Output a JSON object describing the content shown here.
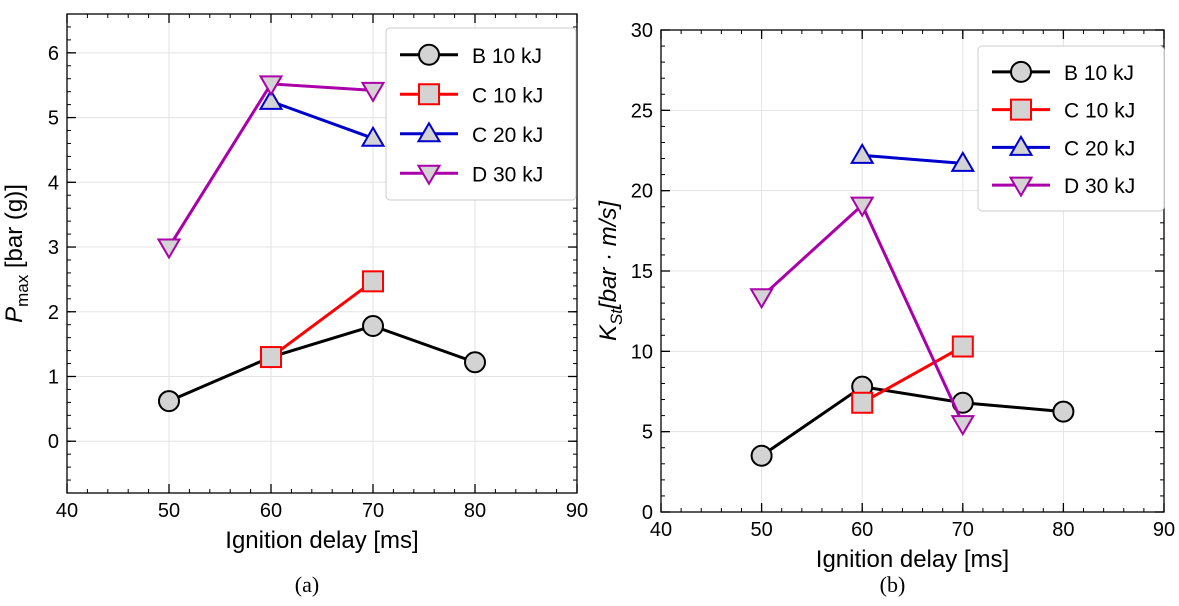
{
  "colors": {
    "B": "#000000",
    "C10": "#ff0000",
    "C20": "#0000cc",
    "D": "#aa00aa",
    "marker_fill": "#d3d3d3",
    "grid": "#e3e3e3"
  },
  "chart_data": [
    {
      "type": "line",
      "caption": "(a)",
      "xlabel": "Ignition delay [ms]",
      "ylabel": {
        "main": "P",
        "sub": "max",
        "tail": " [bar (g)]"
      },
      "xlim": [
        40,
        90
      ],
      "ylim": [
        -0.8,
        6.6
      ],
      "xticks": [
        40,
        50,
        60,
        70,
        80,
        90
      ],
      "yticks": [
        0,
        1,
        2,
        3,
        4,
        5,
        6
      ],
      "grid": true,
      "legend": "top-right",
      "series": [
        {
          "name": "B 10 kJ",
          "marker": "circle",
          "color": "#000000",
          "x": [
            50,
            60,
            70,
            80
          ],
          "y": [
            0.62,
            1.3,
            1.78,
            1.22
          ]
        },
        {
          "name": "C 10 kJ",
          "marker": "square",
          "color": "#ff0000",
          "x": [
            60,
            70
          ],
          "y": [
            1.3,
            2.47
          ]
        },
        {
          "name": "C 20 kJ",
          "marker": "triangle-up",
          "color": "#0000cc",
          "x": [
            60,
            70
          ],
          "y": [
            5.25,
            4.68
          ]
        },
        {
          "name": "D 30 kJ",
          "marker": "triangle-down",
          "color": "#aa00aa",
          "x": [
            50,
            60,
            70
          ],
          "y": [
            3.0,
            5.52,
            5.42
          ]
        }
      ]
    },
    {
      "type": "line",
      "caption": "(b)",
      "xlabel": "Ignition delay [ms]",
      "ylabel": {
        "main": "K",
        "sub": "St",
        "tail": "[bar · m/s]"
      },
      "xlim": [
        40,
        90
      ],
      "ylim": [
        0,
        30
      ],
      "xticks": [
        40,
        50,
        60,
        70,
        80,
        90
      ],
      "yticks": [
        0,
        5,
        10,
        15,
        20,
        25,
        30
      ],
      "grid": true,
      "legend": "top-right",
      "series": [
        {
          "name": "B 10 kJ",
          "marker": "circle",
          "color": "#000000",
          "x": [
            50,
            60,
            70,
            80
          ],
          "y": [
            3.5,
            7.8,
            6.8,
            6.25
          ]
        },
        {
          "name": "C 10 kJ",
          "marker": "square",
          "color": "#ff0000",
          "x": [
            60,
            70
          ],
          "y": [
            6.8,
            10.3
          ]
        },
        {
          "name": "C 20 kJ",
          "marker": "triangle-up",
          "color": "#0000cc",
          "x": [
            60,
            70
          ],
          "y": [
            22.2,
            21.7
          ]
        },
        {
          "name": "D 30 kJ",
          "marker": "triangle-down",
          "color": "#aa00aa",
          "x": [
            50,
            60,
            70
          ],
          "y": [
            13.4,
            19.1,
            5.5
          ]
        }
      ]
    }
  ]
}
